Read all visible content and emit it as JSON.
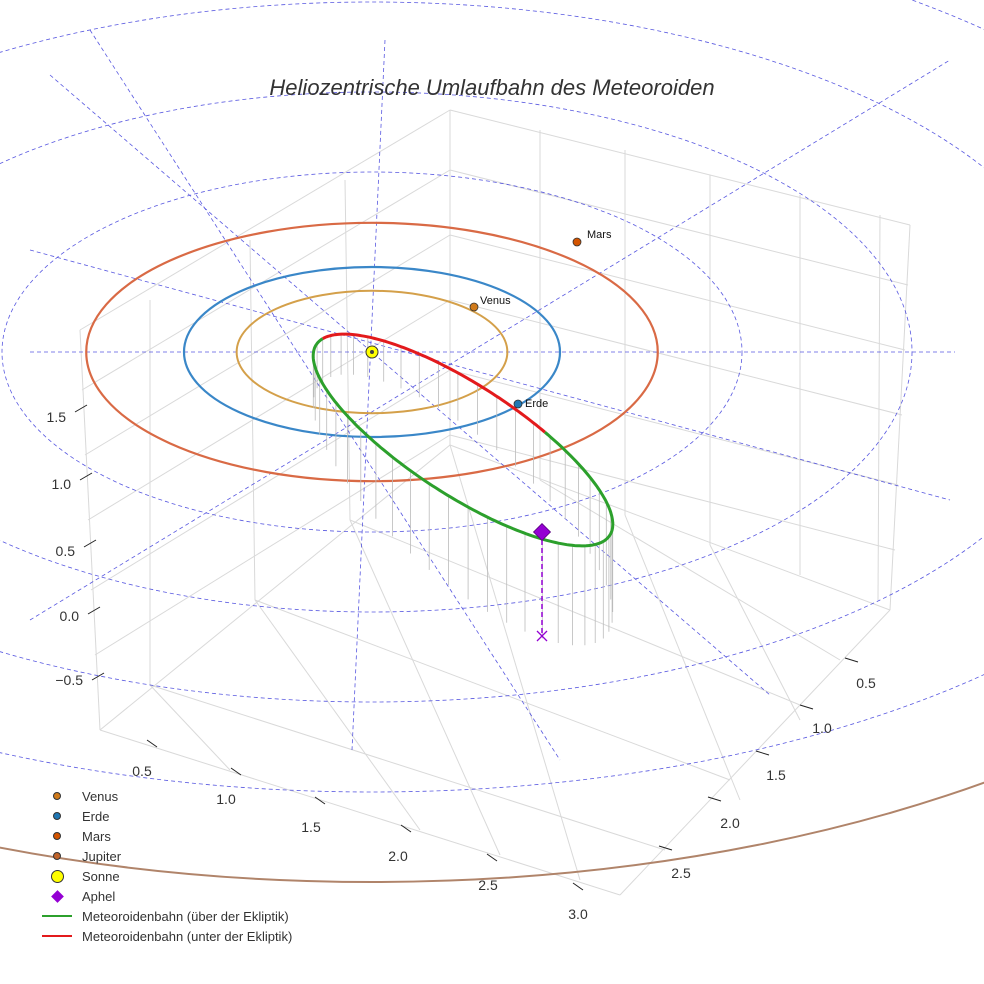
{
  "chart_data": {
    "type": "line",
    "title": "Heliozentrische Umlaufbahn des Meteoroiden",
    "z_ticks": [
      "1.5",
      "1.0",
      "0.5",
      "0.0",
      "−0.5"
    ],
    "x_ticks": [
      "0.5",
      "1.0",
      "1.5",
      "2.0",
      "2.5",
      "3.0"
    ],
    "y_ticks": [
      "0.5",
      "1.0",
      "1.5",
      "2.0",
      "2.5"
    ],
    "planets": [
      {
        "name": "Venus",
        "label": "Venus",
        "orbit_radius_au": 0.72,
        "color": "#d4a04a",
        "marker_color": "#d07a1a"
      },
      {
        "name": "Erde",
        "label": "Erde",
        "orbit_radius_au": 1.0,
        "color": "#3a87c8",
        "marker_color": "#1f77b4"
      },
      {
        "name": "Mars",
        "label": "Mars",
        "orbit_radius_au": 1.52,
        "color": "#d96a45",
        "marker_color": "#d35400"
      },
      {
        "name": "Jupiter",
        "label": "Jupiter",
        "orbit_radius_au": 5.2,
        "color": "#b0846a",
        "marker_color": "#c0632a"
      }
    ],
    "sun": {
      "label": "Sonne",
      "color": "#ffff00"
    },
    "aphel": {
      "label": "Aphel",
      "color": "#9400d3"
    },
    "meteoroid_orbit": {
      "above_label": "Meteoroidenbahn (über der Ekliptik)",
      "below_label": "Meteoroidenbahn (unter der Ekliptik)",
      "above_color": "#2ca02c",
      "below_color": "#e31a1c",
      "perihelion_au": 0.05,
      "aphelion_au": 1.55
    }
  },
  "legend": [
    {
      "key": "venus",
      "label": "Venus",
      "kind": "dot",
      "color": "#d07a1a"
    },
    {
      "key": "earth",
      "label": "Erde",
      "kind": "dot",
      "color": "#1f77b4"
    },
    {
      "key": "mars",
      "label": "Mars",
      "kind": "dot",
      "color": "#d35400"
    },
    {
      "key": "jupiter",
      "label": "Jupiter",
      "kind": "dot",
      "color": "#c0632a"
    },
    {
      "key": "sun",
      "label": "Sonne",
      "kind": "sun",
      "color": "#ffff00"
    },
    {
      "key": "aphel",
      "label": "Aphel",
      "kind": "diamond",
      "color": "#9400d3"
    },
    {
      "key": "orbit-above",
      "label": "Meteoroidenbahn (über der Ekliptik)",
      "kind": "line",
      "color": "#2ca02c"
    },
    {
      "key": "orbit-below",
      "label": "Meteoroidenbahn (unter der Ekliptik)",
      "kind": "line",
      "color": "#e31a1c"
    }
  ]
}
